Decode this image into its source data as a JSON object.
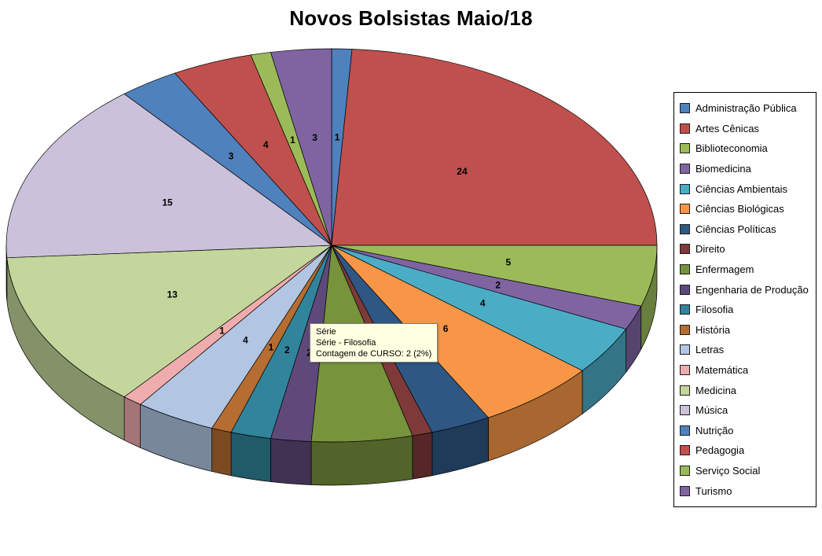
{
  "title": "Novos Bolsistas Maio/18",
  "tooltip": {
    "lines": [
      "Série",
      "Série - Filosofia",
      "Contagem de CURSO: 2 (2%)"
    ]
  },
  "chart_data": {
    "type": "pie",
    "title": "Novos Bolsistas Maio/18",
    "effect": "3d",
    "legend_position": "right",
    "value_field": "Contagem de CURSO",
    "series_name": "Série",
    "total": 100,
    "categories": [
      "Administração Pública",
      "Artes Cênicas",
      "Biblioteconomia",
      "Biomedicina",
      "Ciências Ambientais",
      "Ciências Biológicas",
      "Ciências Políticas",
      "Direito",
      "Enfermagem",
      "Engenharia de Produção",
      "Filosofia",
      "História",
      "Letras",
      "Matemática",
      "Medicina",
      "Música",
      "Nutrição",
      "Pedagogia",
      "Serviço Social",
      "Turismo"
    ],
    "values": [
      1,
      24,
      5,
      2,
      4,
      6,
      3,
      1,
      5,
      2,
      2,
      1,
      4,
      1,
      13,
      15,
      3,
      4,
      1,
      3
    ],
    "colors": [
      "#4F81BD",
      "#C0504D",
      "#9BBB59",
      "#8064A2",
      "#4BACC6",
      "#F79646",
      "#2F5783",
      "#7E3A38",
      "#77933C",
      "#5F497A",
      "#31849B",
      "#B66D31",
      "#B2C6E4",
      "#EFACAC",
      "#C3D69B",
      "#CCC1DA",
      "#4F81BD",
      "#C0504D",
      "#9BBB59",
      "#8064A2"
    ],
    "labels_shown": true,
    "hidden_labels_note": "labels for Ciências Políticas, Direito and Enfermagem are covered by the tooltip"
  }
}
